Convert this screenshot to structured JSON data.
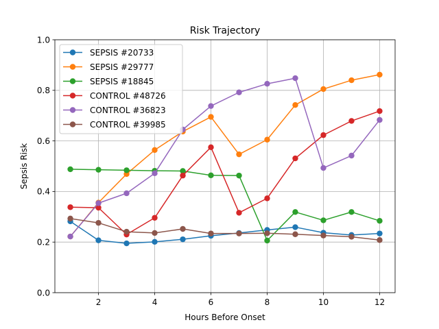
{
  "chart_data": {
    "type": "line",
    "title": "Risk Trajectory",
    "xlabel": "Hours Before Onset",
    "ylabel": "Sepsis Risk",
    "x": [
      1,
      2,
      3,
      4,
      5,
      6,
      7,
      8,
      9,
      10,
      11,
      12
    ],
    "xlim": [
      0.45,
      12.55
    ],
    "ylim": [
      0,
      1.0
    ],
    "xticks": [
      2,
      4,
      6,
      8,
      10,
      12
    ],
    "yticks": [
      0.0,
      0.2,
      0.4,
      0.6,
      0.8,
      1.0
    ],
    "xtick_labels": [
      "2",
      "4",
      "6",
      "8",
      "10",
      "12"
    ],
    "ytick_labels": [
      "0.0",
      "0.2",
      "0.4",
      "0.6",
      "0.8",
      "1.0"
    ],
    "grid": true,
    "legend_position": "top-left",
    "series": [
      {
        "name": "SEPSIS #20733",
        "color": "#1f77b4",
        "values": [
          0.282,
          0.207,
          0.195,
          0.201,
          0.211,
          0.225,
          0.236,
          0.248,
          0.259,
          0.237,
          0.228,
          0.234
        ]
      },
      {
        "name": "SEPSIS #29777",
        "color": "#ff7f0e",
        "values": [
          0.222,
          0.356,
          0.469,
          0.564,
          0.637,
          0.695,
          0.547,
          0.605,
          0.742,
          0.805,
          0.84,
          0.862
        ]
      },
      {
        "name": "SEPSIS #18845",
        "color": "#2ca02c",
        "values": [
          0.488,
          0.486,
          0.484,
          0.482,
          0.481,
          0.464,
          0.463,
          0.206,
          0.319,
          0.286,
          0.319,
          0.284
        ]
      },
      {
        "name": "CONTROL #48726",
        "color": "#d62728",
        "values": [
          0.338,
          0.336,
          0.23,
          0.296,
          0.463,
          0.575,
          0.316,
          0.373,
          0.531,
          0.623,
          0.679,
          0.718
        ]
      },
      {
        "name": "CONTROL #36823",
        "color": "#9467bd",
        "values": [
          0.222,
          0.354,
          0.393,
          0.472,
          0.645,
          0.738,
          0.792,
          0.826,
          0.848,
          0.493,
          0.542,
          0.683
        ]
      },
      {
        "name": "CONTROL #39985",
        "color": "#8c564b",
        "values": [
          0.293,
          0.276,
          0.241,
          0.236,
          0.252,
          0.234,
          0.234,
          0.235,
          0.231,
          0.226,
          0.221,
          0.208
        ]
      }
    ]
  }
}
